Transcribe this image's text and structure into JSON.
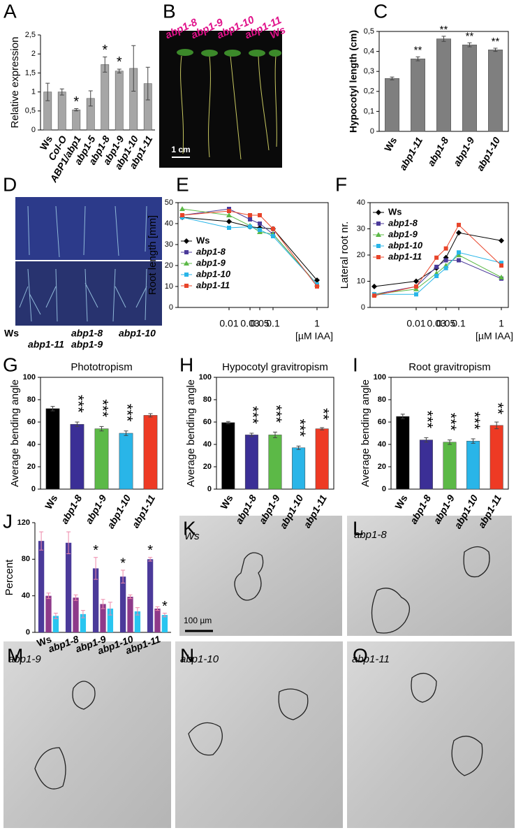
{
  "chart_data": [
    {
      "panel": "A",
      "type": "bar",
      "ylabel": "Relative expression",
      "categories": [
        "Ws",
        "Col-O",
        "ABP1/abp1",
        "abp1-5",
        "abp1-8",
        "abp1-9",
        "abp1-10",
        "abp1-11"
      ],
      "values": [
        1.0,
        1.0,
        0.53,
        0.83,
        1.72,
        1.55,
        1.62,
        1.22
      ],
      "errors": [
        0.23,
        0.08,
        0.03,
        0.2,
        0.2,
        0.05,
        0.6,
        0.43
      ],
      "annotations": [
        null,
        null,
        "*",
        null,
        "*",
        "*",
        null,
        null
      ],
      "color": "#a6a6a6",
      "ylim": [
        0,
        2.5
      ],
      "yticks": [
        0,
        {
          "value": 0.5,
          "label": "0,5"
        },
        1,
        {
          "value": 1.5,
          "label": "1,5"
        },
        2,
        {
          "value": 2.5,
          "label": "2,5"
        }
      ]
    },
    {
      "panel": "C",
      "type": "bar",
      "ylabel": "Hypocotyl length (cm)",
      "categories": [
        "Ws",
        "abp1-11",
        "abp1-8",
        "abp1-9",
        "abp1-10"
      ],
      "values": [
        0.265,
        0.363,
        0.463,
        0.433,
        0.408
      ],
      "errors": [
        0.007,
        0.01,
        0.013,
        0.01,
        0.008
      ],
      "annotations": [
        null,
        "**",
        "**",
        "**",
        "**"
      ],
      "color": "#7f7f7f",
      "ylim": [
        0,
        0.5
      ],
      "yticks": [
        0,
        {
          "value": 0.1,
          "label": "0,1"
        },
        {
          "value": 0.2,
          "label": "0,2"
        },
        {
          "value": 0.3,
          "label": "0,3"
        },
        {
          "value": 0.4,
          "label": "0,4"
        },
        {
          "value": 0.5,
          "label": "0,5"
        }
      ]
    },
    {
      "panel": "E",
      "type": "line",
      "ylabel": "Root length [mm]",
      "xlabel": "[µM IAA]",
      "categories": [
        null,
        "0.01",
        "0.03",
        "0.05",
        "0.1",
        "1"
      ],
      "legend": "lower left",
      "ylim": [
        0,
        50
      ],
      "yticks": [
        0,
        10,
        20,
        30,
        40,
        50
      ],
      "series": [
        {
          "name": "Ws",
          "color": "#000000",
          "marker": "diamond",
          "values": [
            43,
            41,
            38.5,
            38,
            37.5,
            13
          ]
        },
        {
          "name": "abp1-8",
          "color": "#4b3a9a",
          "marker": "square",
          "values": [
            44,
            47,
            42,
            40,
            35,
            11
          ]
        },
        {
          "name": "abp1-9",
          "color": "#5cb947",
          "marker": "triangle",
          "values": [
            47,
            44,
            39,
            36,
            35,
            11
          ]
        },
        {
          "name": "abp1-10",
          "color": "#29b5e8",
          "marker": "square",
          "values": [
            43,
            38,
            38.5,
            37,
            34,
            11
          ]
        },
        {
          "name": "abp1-11",
          "color": "#e8442a",
          "marker": "square",
          "values": [
            44,
            46,
            44,
            44,
            37.5,
            10
          ]
        }
      ]
    },
    {
      "panel": "F",
      "type": "line",
      "ylabel": "Lateral root nr.",
      "xlabel": "[µM IAA]",
      "categories": [
        null,
        "0.01",
        "0.03",
        "0.05",
        "0.1",
        "1"
      ],
      "legend": "upper left",
      "ylim": [
        0,
        40
      ],
      "yticks": [
        0,
        10,
        20,
        30,
        40
      ],
      "series": [
        {
          "name": "Ws",
          "color": "#000000",
          "marker": "diamond",
          "values": [
            8,
            10,
            15,
            19,
            28.5,
            25.5
          ]
        },
        {
          "name": "abp1-8",
          "color": "#4b3a9a",
          "marker": "square",
          "values": [
            5,
            8,
            15.5,
            18,
            18,
            11
          ]
        },
        {
          "name": "abp1-9",
          "color": "#5cb947",
          "marker": "triangle",
          "values": [
            5,
            7,
            13,
            16,
            20,
            11.5
          ]
        },
        {
          "name": "abp1-10",
          "color": "#29b5e8",
          "marker": "square",
          "values": [
            5,
            5,
            12,
            15,
            21,
            17
          ]
        },
        {
          "name": "abp1-11",
          "color": "#e8442a",
          "marker": "square",
          "values": [
            4.5,
            8,
            19,
            22.5,
            31.5,
            16
          ]
        }
      ]
    },
    {
      "panel": "G",
      "type": "bar",
      "title": "Phototropism",
      "ylabel": "Average bending angle",
      "categories": [
        "Ws",
        "abp1-8",
        "abp1-9",
        "abp1-10",
        "abp1-11"
      ],
      "values": [
        72,
        58,
        54,
        50,
        66
      ],
      "errors": [
        2,
        2,
        2,
        2,
        1.5
      ],
      "annotations": [
        null,
        "***",
        "***",
        "***",
        null
      ],
      "colors": [
        "#000000",
        "#3b2f96",
        "#5cb947",
        "#29b5e8",
        "#ee3a24"
      ],
      "ylim": [
        0,
        100
      ],
      "yticks": [
        0,
        20,
        40,
        60,
        80,
        100
      ]
    },
    {
      "panel": "H",
      "type": "bar",
      "title": "Hypocotyl gravitropism",
      "ylabel": "Average bending angle",
      "categories": [
        "Ws",
        "abp1-8",
        "abp1-9",
        "abp1-10",
        "abp1-11"
      ],
      "values": [
        59.5,
        48.5,
        48.5,
        37,
        54
      ],
      "errors": [
        1,
        1.5,
        2.5,
        1.5,
        1
      ],
      "annotations": [
        null,
        "***",
        "***",
        "***",
        "**"
      ],
      "colors": [
        "#000000",
        "#3b2f96",
        "#5cb947",
        "#29b5e8",
        "#ee3a24"
      ],
      "ylim": [
        0,
        100
      ],
      "yticks": [
        0,
        20,
        40,
        60,
        80,
        100
      ]
    },
    {
      "panel": "I",
      "type": "bar",
      "title": "Root gravitropism",
      "ylabel": "Average bending angle",
      "categories": [
        "Ws",
        "abp1-8",
        "abp1-9",
        "abp1-10",
        "abp1-11"
      ],
      "values": [
        65,
        44,
        42,
        43,
        57
      ],
      "errors": [
        2,
        2,
        2,
        2,
        3
      ],
      "annotations": [
        null,
        "***",
        "***",
        "***",
        "**"
      ],
      "colors": [
        "#000000",
        "#3b2f96",
        "#5cb947",
        "#29b5e8",
        "#ee3a24"
      ],
      "ylim": [
        0,
        100
      ],
      "yticks": [
        0,
        20,
        40,
        60,
        80,
        100
      ]
    },
    {
      "panel": "J",
      "type": "bar",
      "ylabel": "Percent",
      "categories": [
        "Ws",
        "abp1-8",
        "abp1-9",
        "abp1-10",
        "abp1-11"
      ],
      "ylim": [
        0,
        120
      ],
      "yticks": [
        0,
        40,
        80,
        120
      ],
      "series": [
        {
          "color": "#4b3a9a",
          "values": [
            100,
            98,
            70,
            61,
            80
          ],
          "errors": [
            10,
            12,
            12,
            7,
            2
          ],
          "annotations": [
            null,
            null,
            "*",
            "*",
            "*"
          ]
        },
        {
          "color": "#8e3a8a",
          "values": [
            40,
            38,
            31,
            39,
            26
          ],
          "errors": [
            3,
            3,
            5,
            2,
            2
          ]
        },
        {
          "color": "#29c5f0",
          "values": [
            18,
            20,
            26,
            23,
            19
          ],
          "errors": [
            3,
            4,
            7,
            4,
            2
          ],
          "annotations": [
            null,
            null,
            null,
            null,
            "*"
          ]
        }
      ]
    }
  ],
  "photos": [
    {
      "panel": "B",
      "labels": [
        "abp1-8",
        "abp1-9",
        "abp1-10",
        "abp1-11",
        "Ws"
      ],
      "scale": "1 cm"
    },
    {
      "panel": "D",
      "labels": [
        "Ws",
        "abp1-11",
        "abp1-8",
        "abp1-9",
        "abp1-10"
      ]
    },
    {
      "panel": "K",
      "labels": [
        "Ws"
      ],
      "scale": "100 µm"
    },
    {
      "panel": "L",
      "labels": [
        "abp1-8"
      ]
    },
    {
      "panel": "M",
      "labels": [
        "abp1-9"
      ]
    },
    {
      "panel": "N",
      "labels": [
        "abp1-10"
      ]
    },
    {
      "panel": "O",
      "labels": [
        "abp1-11"
      ]
    }
  ]
}
